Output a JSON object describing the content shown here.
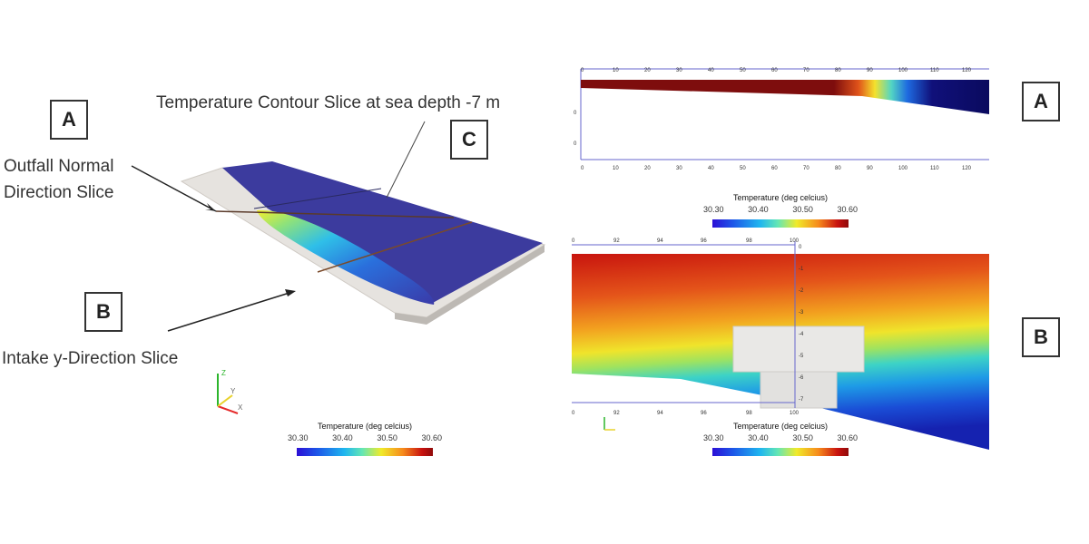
{
  "annotations": {
    "box_a": "A",
    "box_b": "B",
    "box_c": "C",
    "outfall_line1": "Outfall Normal",
    "outfall_line2": "Direction Slice",
    "intake": "Intake y-Direction Slice",
    "contour": "Temperature Contour Slice at sea depth -7 m"
  },
  "panels": {
    "right_a_label": "A",
    "right_b_label": "B"
  },
  "colorbar": {
    "title": "Temperature (deg celcius)",
    "ticks": [
      "30.30",
      "30.40",
      "30.50",
      "30.60"
    ]
  },
  "top_slice_axis": {
    "ticks": [
      "0",
      "10",
      "20",
      "30",
      "40",
      "50",
      "60",
      "70",
      "80",
      "90",
      "100",
      "110",
      "120"
    ],
    "side_ticks": [
      "0",
      "0"
    ]
  },
  "bottom_slice_axis": {
    "ticks": [
      "0",
      "92",
      "94",
      "96",
      "98",
      "100"
    ],
    "depth_ticks": [
      "0",
      "-1",
      "-2",
      "-3",
      "-4",
      "-5",
      "-6",
      "-7"
    ]
  },
  "axes_triad": {
    "x": "X",
    "y": "Y",
    "z": "Z"
  }
}
